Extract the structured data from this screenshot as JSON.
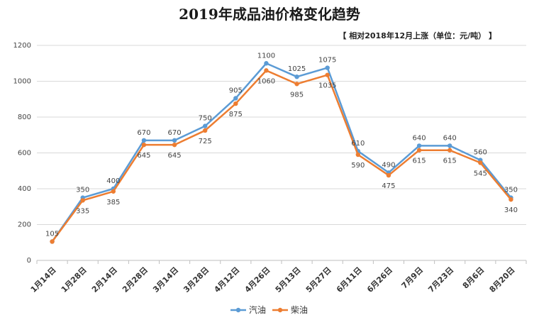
{
  "chart_data": {
    "type": "line",
    "title": "2019年成品油价格变化趋势",
    "subtitle": "【 相对2018年12月上涨（单位：元/吨） 】",
    "categories": [
      "1月14日",
      "1月28日",
      "2月14日",
      "2月28日",
      "3月14日",
      "3月28日",
      "4月12日",
      "4月26日",
      "5月13日",
      "5月27日",
      "6月11日",
      "6月26日",
      "7月9日",
      "7月23日",
      "8月6日",
      "8月20日"
    ],
    "series": [
      {
        "name": "汽油",
        "color": "#5b9bd5",
        "values": [
          105,
          350,
          400,
          670,
          670,
          750,
          905,
          1100,
          1025,
          1075,
          610,
          490,
          640,
          640,
          560,
          350
        ]
      },
      {
        "name": "柴油",
        "color": "#ed7d31",
        "values": [
          105,
          335,
          385,
          645,
          645,
          725,
          875,
          1060,
          985,
          1035,
          590,
          475,
          615,
          615,
          545,
          340
        ]
      }
    ],
    "ylim": [
      0,
      1200
    ],
    "yticks": [
      0,
      200,
      400,
      600,
      800,
      1000,
      1200
    ],
    "grid": true,
    "legend_position": "bottom"
  }
}
